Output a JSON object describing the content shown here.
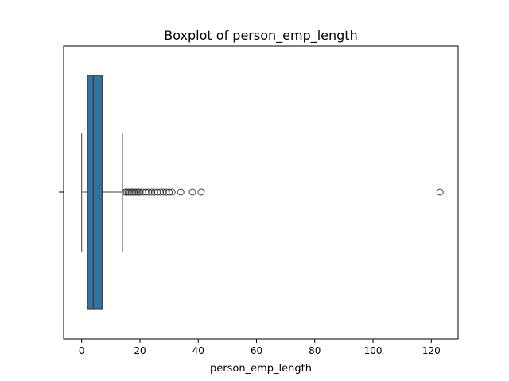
{
  "chart_data": {
    "type": "box",
    "title": "Boxplot of person_emp_length",
    "xlabel": "person_emp_length",
    "ylabel": "",
    "orientation": "horizontal",
    "xlim": [
      -6.2,
      129.2
    ],
    "xticks": [
      0,
      20,
      40,
      60,
      80,
      100,
      120
    ],
    "xtick_labels": [
      "0",
      "20",
      "40",
      "60",
      "80",
      "100",
      "120"
    ],
    "grid": false,
    "box": {
      "whisker_low": 0,
      "q1": 2,
      "median": 4,
      "q3": 7,
      "whisker_high": 14
    },
    "outliers": [
      15,
      15.5,
      16,
      16.5,
      17,
      17.5,
      18,
      18.5,
      19,
      19.5,
      20,
      21,
      22,
      23,
      24,
      25,
      26,
      27,
      28,
      29,
      30,
      31,
      34,
      38,
      41,
      123
    ],
    "colors": {
      "box_fill": "#3274a1",
      "lines": "#3f3f3f",
      "axes": "#000000"
    }
  }
}
